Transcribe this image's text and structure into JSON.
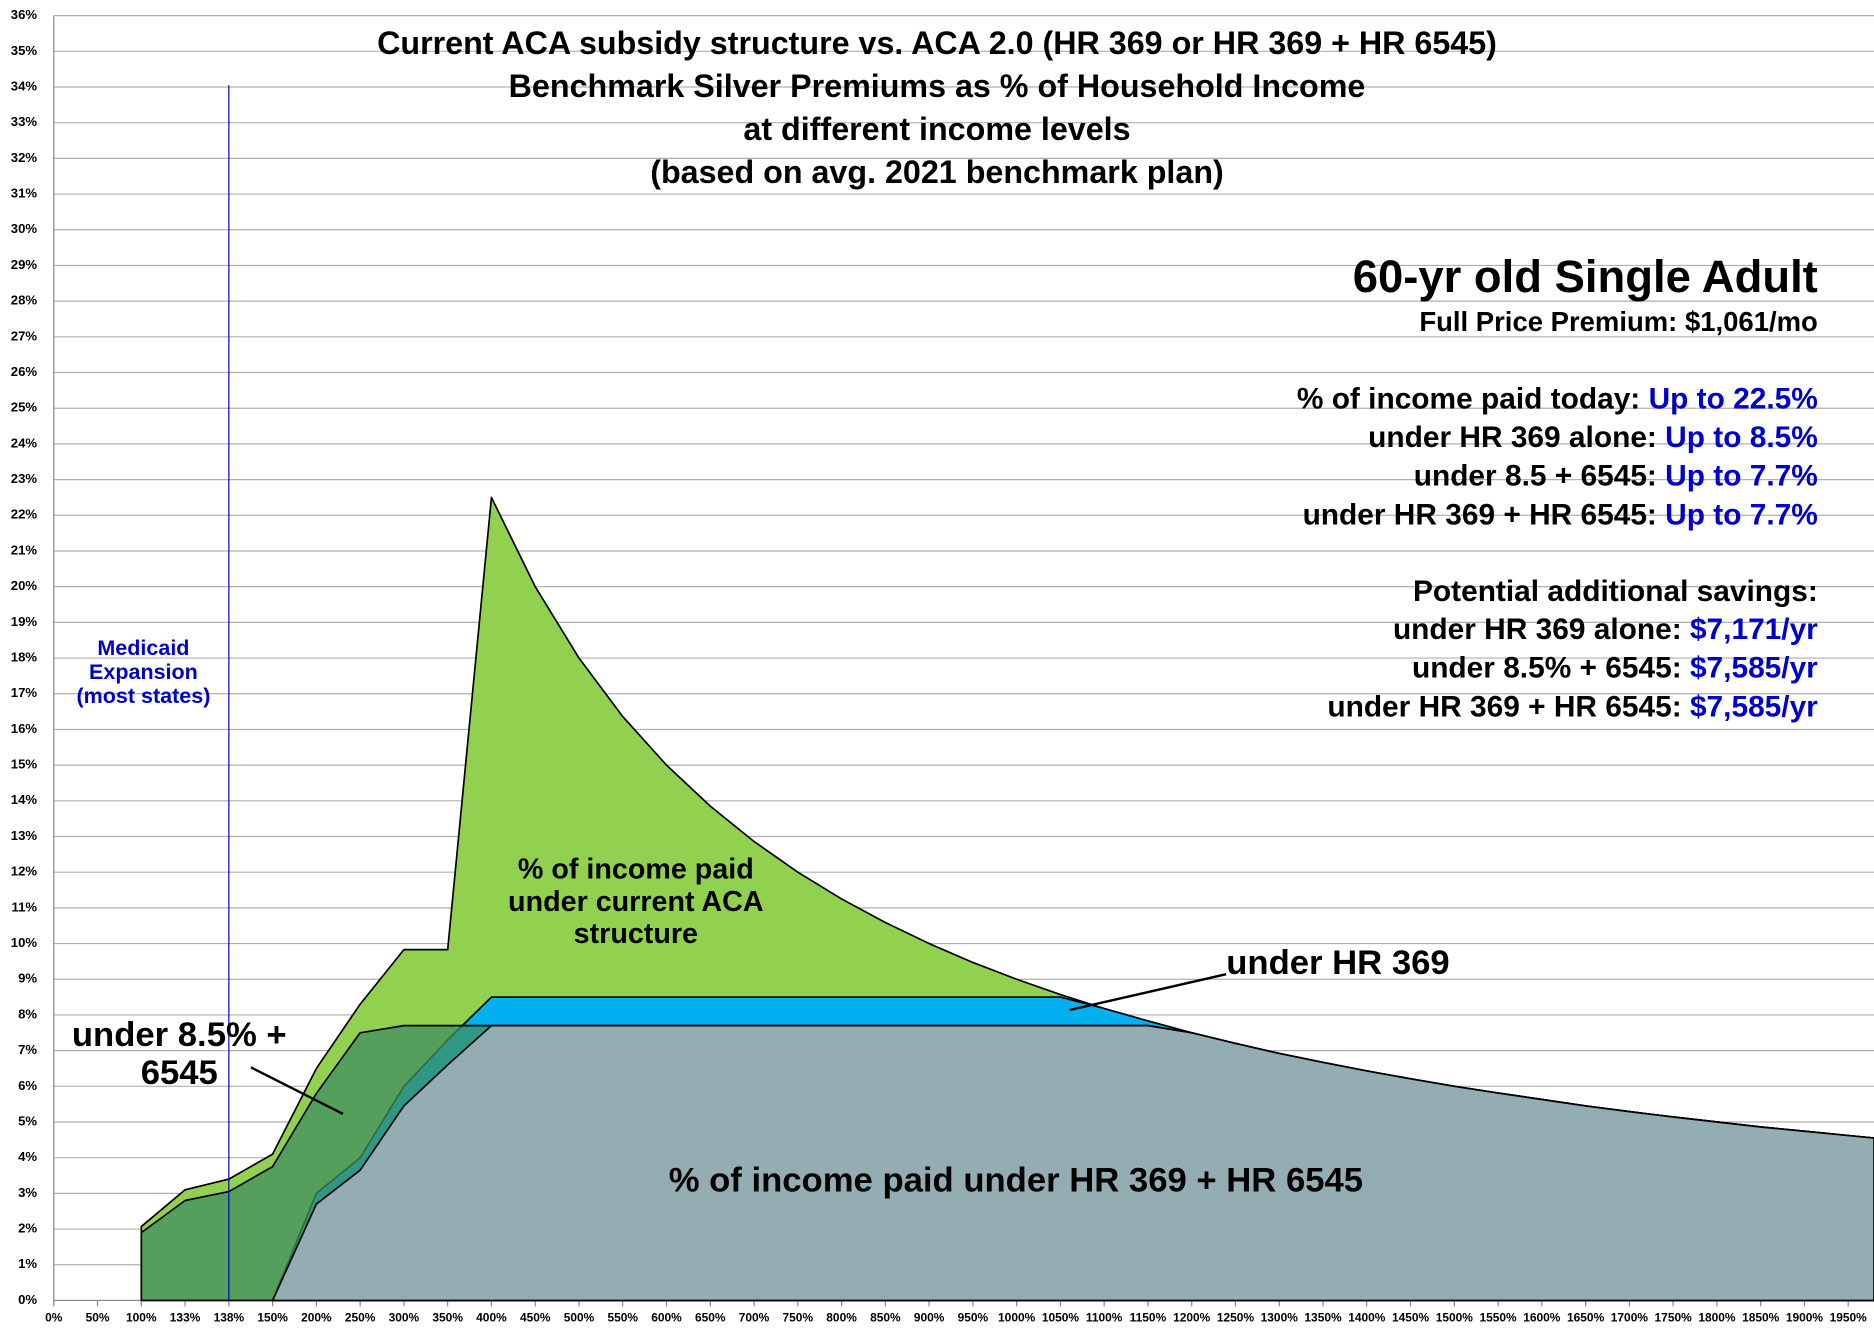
{
  "chart_data": {
    "type": "area",
    "title": [
      "Current ACA subsidy structure vs. ACA 2.0 (HR 369 or HR 369 + HR 6545)",
      "Benchmark Silver Premiums as % of Household Income",
      "at different income levels",
      "(based on avg. 2021 benchmark plan)"
    ],
    "categories": [
      "0%",
      "50%",
      "100%",
      "133%",
      "138%",
      "150%",
      "200%",
      "250%",
      "300%",
      "350%",
      "400%",
      "450%",
      "500%",
      "550%",
      "600%",
      "650%",
      "700%",
      "750%",
      "800%",
      "850%",
      "900%",
      "950%",
      "1000%",
      "1050%",
      "1100%",
      "1150%",
      "1200%",
      "1250%",
      "1300%",
      "1350%",
      "1400%",
      "1450%",
      "1500%",
      "1550%",
      "1600%",
      "1650%",
      "1700%",
      "1750%",
      "1800%",
      "1850%",
      "1900%",
      "1950%"
    ],
    "series": [
      {
        "name": "% of income paid under current ACA structure",
        "color": "#92d050",
        "values": [
          null,
          null,
          2.07,
          3.1,
          3.4,
          4.1,
          6.5,
          8.3,
          9.83,
          9.83,
          22.5,
          20,
          18,
          16.36,
          15,
          13.85,
          12.86,
          12,
          11.25,
          10.59,
          10,
          9.47,
          9,
          8.57,
          8.18,
          7.83,
          7.5,
          7.2,
          6.92,
          6.67,
          6.43,
          6.21,
          6,
          5.81,
          5.63,
          5.45,
          5.29,
          5.14,
          5,
          4.86,
          4.74,
          4.62
        ]
      },
      {
        "name": "under HR 369",
        "color": "#00b0f0",
        "values": [
          null,
          null,
          null,
          null,
          null,
          0,
          3,
          4,
          6,
          7.3,
          8.5,
          8.5,
          8.5,
          8.5,
          8.5,
          8.5,
          8.5,
          8.5,
          8.5,
          8.5,
          8.5,
          8.5,
          8.5,
          8.5,
          8.18,
          7.83,
          7.5,
          7.2,
          6.92,
          6.67,
          6.43,
          6.21,
          6,
          5.81,
          5.63,
          5.45,
          5.29,
          5.14,
          5,
          4.86,
          4.74,
          4.62
        ]
      },
      {
        "name": "under 8.5% + 6545",
        "color": "#3f8f5f",
        "values": [
          null,
          null,
          1.9,
          2.8,
          3.05,
          3.75,
          5.8,
          7.5,
          7.7,
          7.7,
          7.7,
          7.7,
          7.7,
          7.7,
          7.7,
          7.7,
          7.7,
          7.7,
          7.7,
          7.7,
          7.7,
          7.7,
          7.7,
          7.7,
          7.7,
          7.7,
          7.5,
          7.2,
          6.92,
          6.67,
          6.43,
          6.21,
          6,
          5.81,
          5.63,
          5.45,
          5.29,
          5.14,
          5,
          4.86,
          4.74,
          4.62
        ]
      },
      {
        "name": "% of income paid under HR 369 + HR 6545",
        "color": "#93adb3",
        "values": [
          null,
          null,
          null,
          null,
          null,
          0,
          2.7,
          3.65,
          5.45,
          6.6,
          7.7,
          7.7,
          7.7,
          7.7,
          7.7,
          7.7,
          7.7,
          7.7,
          7.7,
          7.7,
          7.7,
          7.7,
          7.7,
          7.7,
          7.7,
          7.7,
          7.5,
          7.2,
          6.92,
          6.67,
          6.43,
          6.21,
          6,
          5.81,
          5.63,
          5.45,
          5.29,
          5.14,
          5,
          4.86,
          4.74,
          4.62
        ]
      }
    ],
    "ylim": [
      0,
      36
    ],
    "yticks": [
      {
        "value": 0,
        "label": "0%"
      },
      {
        "value": 1,
        "label": "1%"
      },
      {
        "value": 2,
        "label": "2%"
      },
      {
        "value": 3,
        "label": "3%"
      },
      {
        "value": 4,
        "label": "4%"
      },
      {
        "value": 5,
        "label": "5%"
      },
      {
        "value": 6,
        "label": "6%"
      },
      {
        "value": 7,
        "label": "7%"
      },
      {
        "value": 8,
        "label": "8%"
      },
      {
        "value": 9,
        "label": "9%"
      },
      {
        "value": 10,
        "label": "10%"
      },
      {
        "value": 11,
        "label": "11%"
      },
      {
        "value": 12,
        "label": "12%"
      },
      {
        "value": 13,
        "label": "13%"
      },
      {
        "value": 14,
        "label": "14%"
      },
      {
        "value": 15,
        "label": "15%"
      },
      {
        "value": 16,
        "label": "16%"
      },
      {
        "value": 17,
        "label": "17%"
      },
      {
        "value": 18,
        "label": "18%"
      },
      {
        "value": 19,
        "label": "19%"
      },
      {
        "value": 20,
        "label": "20%"
      },
      {
        "value": 21,
        "label": "21%"
      },
      {
        "value": 22,
        "label": "22%"
      },
      {
        "value": 23,
        "label": "23%"
      },
      {
        "value": 24,
        "label": "24%"
      },
      {
        "value": 25,
        "label": "25%"
      },
      {
        "value": 26,
        "label": "26%"
      },
      {
        "value": 27,
        "label": "27%"
      },
      {
        "value": 28,
        "label": "28%"
      },
      {
        "value": 29,
        "label": "29%"
      },
      {
        "value": 30,
        "label": "30%"
      },
      {
        "value": 31,
        "label": "31%"
      },
      {
        "value": 32,
        "label": "32%"
      },
      {
        "value": 33,
        "label": "33%"
      },
      {
        "value": 34,
        "label": "34%"
      },
      {
        "value": 35,
        "label": "35%"
      },
      {
        "value": 36,
        "label": "36%"
      }
    ],
    "grid": true,
    "vline": {
      "category": "138%",
      "label": "Medicaid Expansion (most states)",
      "color": "#0000cc"
    },
    "panel": {
      "heading": "60-yr old Single Adult",
      "subheading": "Full Price Premium: $1,061/mo",
      "rows": [
        {
          "label": "% of income paid today:",
          "value": "Up to 22.5%"
        },
        {
          "label": "under HR 369 alone:",
          "value": "Up to 8.5%"
        },
        {
          "label": "under 8.5 + 6545:",
          "value": "Up to 7.7%"
        },
        {
          "label": "under HR 369 + HR 6545:",
          "value": "Up to 7.7%"
        }
      ],
      "savings_heading": "Potential additional savings:",
      "savings_rows": [
        {
          "label": "under HR 369 alone:",
          "value": "$7,171/yr"
        },
        {
          "label": "under 8.5% + 6545:",
          "value": "$7,585/yr"
        },
        {
          "label": "under HR 369 + HR 6545:",
          "value": "$7,585/yr"
        }
      ],
      "value_color": "#0000cc"
    }
  }
}
